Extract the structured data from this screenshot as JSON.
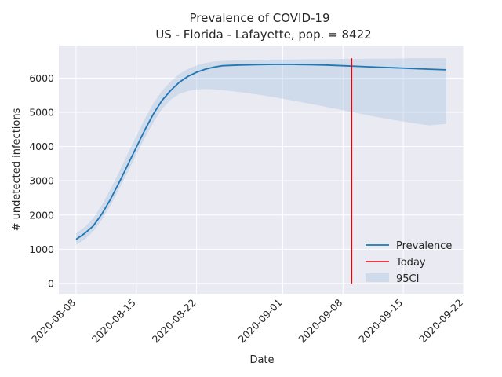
{
  "chart_data": {
    "type": "line",
    "title": "Prevalence of COVID-19",
    "subtitle": "US - Florida - Lafayette, pop. = 8422",
    "xlabel": "Date",
    "ylabel": "# undetected infections",
    "xlim": [
      "2020-08-06",
      "2020-09-22"
    ],
    "ylim": [
      -300,
      6950
    ],
    "x_ticks": [
      "2020-08-08",
      "2020-08-15",
      "2020-08-22",
      "2020-09-01",
      "2020-09-08",
      "2020-09-15",
      "2020-09-22"
    ],
    "y_ticks": [
      0,
      1000,
      2000,
      3000,
      4000,
      5000,
      6000
    ],
    "grid": true,
    "legend_position": "lower-right",
    "colors": {
      "prevalence": "#1f77b4",
      "today": "#e8000b",
      "ci": "#a7c3e0",
      "background": "#eaeaf2"
    },
    "x": [
      "2020-08-08",
      "2020-08-09",
      "2020-08-10",
      "2020-08-11",
      "2020-08-12",
      "2020-08-13",
      "2020-08-14",
      "2020-08-15",
      "2020-08-16",
      "2020-08-17",
      "2020-08-18",
      "2020-08-19",
      "2020-08-20",
      "2020-08-21",
      "2020-08-22",
      "2020-08-23",
      "2020-08-24",
      "2020-08-25",
      "2020-08-27",
      "2020-08-29",
      "2020-08-31",
      "2020-09-02",
      "2020-09-04",
      "2020-09-06",
      "2020-09-08",
      "2020-09-10",
      "2020-09-12",
      "2020-09-14",
      "2020-09-16",
      "2020-09-18",
      "2020-09-20"
    ],
    "series": [
      {
        "name": "Prevalence",
        "values": [
          1290,
          1460,
          1680,
          2030,
          2460,
          2950,
          3460,
          3980,
          4490,
          4960,
          5350,
          5640,
          5880,
          6050,
          6170,
          6260,
          6320,
          6360,
          6380,
          6390,
          6400,
          6400,
          6390,
          6380,
          6360,
          6340,
          6320,
          6300,
          6280,
          6260,
          6240
        ]
      },
      {
        "name": "95CI",
        "lower": [
          1130,
          1290,
          1520,
          1860,
          2280,
          2760,
          3250,
          3760,
          4260,
          4720,
          5100,
          5370,
          5540,
          5620,
          5670,
          5680,
          5670,
          5650,
          5590,
          5520,
          5440,
          5350,
          5260,
          5160,
          5060,
          4960,
          4860,
          4770,
          4690,
          4620,
          4660
        ],
        "upper": [
          1460,
          1650,
          1910,
          2290,
          2760,
          3260,
          3790,
          4310,
          4820,
          5270,
          5630,
          5900,
          6120,
          6270,
          6370,
          6440,
          6480,
          6500,
          6520,
          6530,
          6540,
          6540,
          6550,
          6550,
          6560,
          6560,
          6570,
          6570,
          6580,
          6580,
          6580
        ]
      }
    ],
    "today": {
      "name": "Today",
      "date": "2020-09-09"
    }
  }
}
